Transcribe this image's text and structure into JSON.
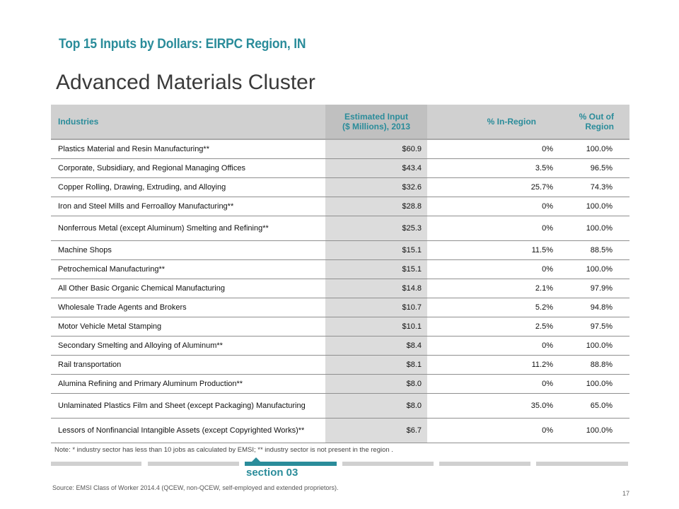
{
  "header": {
    "top_title": "Top 15 Inputs by Dollars: EIRPC Region, IN",
    "main_title": "Advanced Materials Cluster"
  },
  "table": {
    "headers": {
      "industries": "Industries",
      "estimated_line1": "Estimated Input",
      "estimated_line2": "($ Millions), 2013",
      "in_region": "% In-Region",
      "out_region": "% Out of Region"
    },
    "rows": [
      {
        "industry": "Plastics Material and Resin Manufacturing**",
        "input": "$60.9",
        "in": "0%",
        "out": "100.0%"
      },
      {
        "industry": "Corporate, Subsidiary, and Regional Managing Offices",
        "input": "$43.4",
        "in": "3.5%",
        "out": "96.5%"
      },
      {
        "industry": "Copper Rolling, Drawing, Extruding, and Alloying",
        "input": "$32.6",
        "in": "25.7%",
        "out": "74.3%"
      },
      {
        "industry": "Iron and Steel Mills and Ferroalloy Manufacturing**",
        "input": "$28.8",
        "in": "0%",
        "out": "100.0%"
      },
      {
        "industry": "Nonferrous Metal (except Aluminum) Smelting and Refining**",
        "input": "$25.3",
        "in": "0%",
        "out": "100.0%"
      },
      {
        "industry": "Machine Shops",
        "input": "$15.1",
        "in": "11.5%",
        "out": "88.5%"
      },
      {
        "industry": "Petrochemical Manufacturing**",
        "input": "$15.1",
        "in": "0%",
        "out": "100.0%"
      },
      {
        "industry": "All Other Basic Organic Chemical Manufacturing",
        "input": "$14.8",
        "in": "2.1%",
        "out": "97.9%"
      },
      {
        "industry": "Wholesale Trade Agents and Brokers",
        "input": "$10.7",
        "in": "5.2%",
        "out": "94.8%"
      },
      {
        "industry": "Motor Vehicle Metal Stamping",
        "input": "$10.1",
        "in": "2.5%",
        "out": "97.5%"
      },
      {
        "industry": "Secondary Smelting and Alloying of Aluminum**",
        "input": "$8.4",
        "in": "0%",
        "out": "100.0%"
      },
      {
        "industry": "Rail transportation",
        "input": "$8.1",
        "in": "11.2%",
        "out": "88.8%"
      },
      {
        "industry": "Alumina Refining and Primary Aluminum Production**",
        "input": "$8.0",
        "in": "0%",
        "out": "100.0%"
      },
      {
        "industry": "Unlaminated Plastics Film and Sheet (except Packaging) Manufacturing",
        "input": "$8.0",
        "in": "35.0%",
        "out": "65.0%"
      },
      {
        "industry": "Lessors of Nonfinancial Intangible Assets (except Copyrighted Works)**",
        "input": "$6.7",
        "in": "0%",
        "out": "100.0%"
      }
    ]
  },
  "note": "Note: * industry sector has less than 10 jobs as calculated by EMSI; ** industry sector is not present in the region .",
  "footer": {
    "section_label": "section 03",
    "source": "Source: EMSI Class of Worker 2014.4 (QCEW, non-QCEW, self-employed and extended proprietors).",
    "page_number": "17"
  },
  "colors": {
    "accent": "#2a8c9a",
    "header_bg": "#d0d0d0",
    "nav_inactive": "#d0d0d0"
  }
}
